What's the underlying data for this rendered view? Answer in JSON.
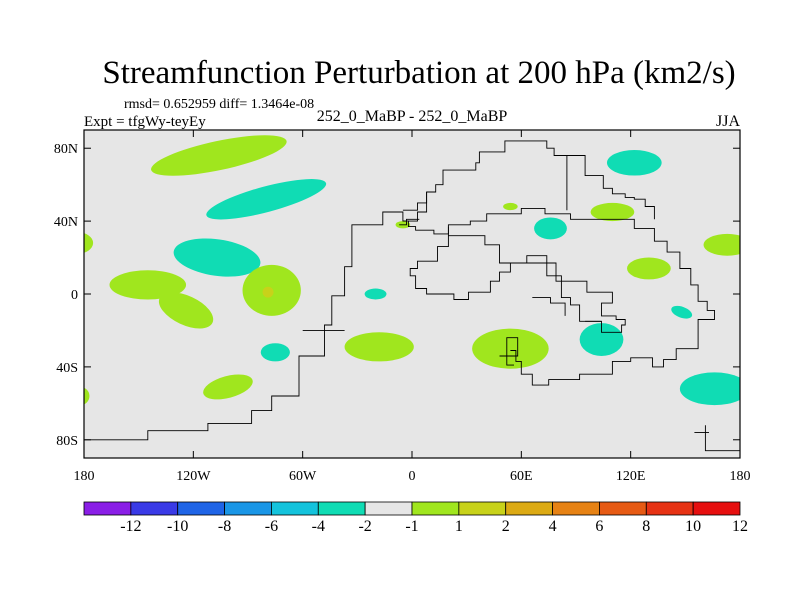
{
  "chart_data": {
    "type": "contour_map",
    "title": "Streamfunction Perturbation at 200 hPa (km2/s)",
    "subtitle_stats": "rmsd= 0.652959 diff= 1.3464e-08",
    "left_label": "Expt = tfgWy-teyEy",
    "center_label": "252_0_MaBP - 252_0_MaBP",
    "right_label": "JJA",
    "xlim": [
      -180,
      180
    ],
    "ylim": [
      -90,
      90
    ],
    "x_ticks": [
      {
        "value": -180,
        "label": "180"
      },
      {
        "value": -120,
        "label": "120W"
      },
      {
        "value": -60,
        "label": "60W"
      },
      {
        "value": 0,
        "label": "0"
      },
      {
        "value": 60,
        "label": "60E"
      },
      {
        "value": 120,
        "label": "120E"
      },
      {
        "value": 180,
        "label": "180"
      }
    ],
    "y_ticks": [
      {
        "value": 80,
        "label": "80N"
      },
      {
        "value": 40,
        "label": "40N"
      },
      {
        "value": 0,
        "label": "0"
      },
      {
        "value": -40,
        "label": "40S"
      },
      {
        "value": -80,
        "label": "80S"
      }
    ],
    "colorbar": {
      "colors": [
        "#8a1ee6",
        "#3a3ae6",
        "#1f64e6",
        "#1a96e6",
        "#14c3dc",
        "#10dcb4",
        "#e6e6e6",
        "#a0e61e",
        "#c8d21a",
        "#dcaa14",
        "#e68214",
        "#e65a14",
        "#e63214",
        "#e60f0f"
      ],
      "labels": [
        "-12",
        "-10",
        "-8",
        "-6",
        "-4",
        "-2",
        "-1",
        "1",
        "2",
        "4",
        "6",
        "8",
        "10",
        "12"
      ]
    },
    "positive_color": "#a0e61e",
    "negative_color": "#10dcb4",
    "core_color": "#c8d21a",
    "anomalies": [
      {
        "lon": -106,
        "lat": 76,
        "rlon": 38,
        "rlat": 8,
        "rot": -12,
        "level": 2
      },
      {
        "lon": -80,
        "lat": 52,
        "rlon": 34,
        "rlat": 7,
        "rot": -15,
        "level": -2
      },
      {
        "lon": -184,
        "lat": 28,
        "rlon": 9,
        "rlat": 6,
        "rot": 0,
        "level": 2
      },
      {
        "lon": -107,
        "lat": 20,
        "rlon": 24,
        "rlat": 10,
        "rot": 8,
        "level": -2
      },
      {
        "lon": -145,
        "lat": 5,
        "rlon": 21,
        "rlat": 8,
        "rot": 0,
        "level": 2
      },
      {
        "lon": -124,
        "lat": -9,
        "rlon": 16,
        "rlat": 8,
        "rot": 25,
        "level": 2
      },
      {
        "lon": -77,
        "lat": 2,
        "rlon": 16,
        "rlat": 14,
        "rot": 0,
        "level": 2
      },
      {
        "lon": -79,
        "lat": 1,
        "rlon": 3,
        "rlat": 3,
        "rot": 0,
        "level": 4
      },
      {
        "lon": -75,
        "lat": -32,
        "rlon": 8,
        "rlat": 5,
        "rot": 0,
        "level": -2
      },
      {
        "lon": -101,
        "lat": -51,
        "rlon": 14,
        "rlat": 6,
        "rot": -15,
        "level": 2
      },
      {
        "lon": -182,
        "lat": -56,
        "rlon": 5,
        "rlat": 5,
        "rot": 0,
        "level": 2
      },
      {
        "lon": -20,
        "lat": 0,
        "rlon": 6,
        "rlat": 3,
        "rot": 0,
        "level": -2
      },
      {
        "lon": -18,
        "lat": -29,
        "rlon": 19,
        "rlat": 8,
        "rot": 0,
        "level": 2
      },
      {
        "lon": -5,
        "lat": 38,
        "rlon": 4,
        "rlat": 2,
        "rot": 0,
        "level": 2
      },
      {
        "lon": 54,
        "lat": -30,
        "rlon": 21,
        "rlat": 11,
        "rot": 0,
        "level": 2
      },
      {
        "lon": 54,
        "lat": 48,
        "rlon": 4,
        "rlat": 2,
        "rot": 0,
        "level": 2
      },
      {
        "lon": 76,
        "lat": 36,
        "rlon": 9,
        "rlat": 6,
        "rot": 0,
        "level": -2
      },
      {
        "lon": 110,
        "lat": 45,
        "rlon": 12,
        "rlat": 5,
        "rot": 0,
        "level": 2
      },
      {
        "lon": 122,
        "lat": 72,
        "rlon": 15,
        "rlat": 7,
        "rot": 0,
        "level": -2
      },
      {
        "lon": 104,
        "lat": -25,
        "rlon": 12,
        "rlat": 9,
        "rot": 0,
        "level": -2
      },
      {
        "lon": 130,
        "lat": 14,
        "rlon": 12,
        "rlat": 6,
        "rot": 0,
        "level": 2
      },
      {
        "lon": 148,
        "lat": -10,
        "rlon": 6,
        "rlat": 3,
        "rot": 20,
        "level": -2
      },
      {
        "lon": 173,
        "lat": 27,
        "rlon": 13,
        "rlat": 6,
        "rot": 0,
        "level": 2
      },
      {
        "lon": 166,
        "lat": -52,
        "rlon": 19,
        "rlat": 9,
        "rot": 0,
        "level": -2
      }
    ],
    "coastlines": [
      [
        [
          -185,
          -80
        ],
        [
          -145,
          -80
        ],
        [
          -145,
          -75
        ],
        [
          -112,
          -75
        ],
        [
          -112,
          -71
        ],
        [
          -88,
          -71
        ],
        [
          -88,
          -64
        ],
        [
          -77,
          -64
        ],
        [
          -77,
          -56
        ],
        [
          -62,
          -56
        ],
        [
          -62,
          -34
        ],
        [
          -48,
          -34
        ],
        [
          -48,
          -17
        ],
        [
          -44,
          -17
        ],
        [
          -44,
          -1
        ],
        [
          -37,
          -1
        ],
        [
          -37,
          15
        ],
        [
          -33,
          15
        ],
        [
          -33,
          38
        ],
        [
          -16,
          38
        ],
        [
          -16,
          45
        ],
        [
          -5,
          45
        ],
        [
          -5,
          40
        ],
        [
          -2,
          40
        ],
        [
          -2,
          37
        ],
        [
          2,
          37
        ],
        [
          2,
          35
        ],
        [
          12,
          35
        ],
        [
          12,
          33
        ],
        [
          20,
          33
        ],
        [
          20,
          38
        ],
        [
          32,
          38
        ],
        [
          32,
          40
        ],
        [
          41,
          40
        ],
        [
          41,
          44
        ],
        [
          60,
          44
        ],
        [
          60,
          47
        ],
        [
          73,
          47
        ],
        [
          73,
          44
        ],
        [
          87,
          44
        ],
        [
          87,
          41
        ],
        [
          122,
          41
        ],
        [
          122,
          36
        ],
        [
          133,
          36
        ],
        [
          133,
          29
        ],
        [
          140,
          29
        ],
        [
          140,
          23
        ],
        [
          147,
          23
        ],
        [
          147,
          14
        ],
        [
          153,
          14
        ],
        [
          153,
          5
        ],
        [
          157,
          5
        ],
        [
          157,
          -4
        ],
        [
          162,
          -4
        ],
        [
          162,
          -9
        ],
        [
          166,
          -9
        ],
        [
          166,
          -14
        ],
        [
          157,
          -14
        ],
        [
          157,
          -30
        ],
        [
          145,
          -30
        ],
        [
          145,
          -36
        ],
        [
          138,
          -36
        ],
        [
          138,
          -40
        ],
        [
          132,
          -40
        ],
        [
          132,
          -35
        ],
        [
          120,
          -35
        ],
        [
          120,
          -37
        ],
        [
          110,
          -37
        ],
        [
          110,
          -44
        ],
        [
          92,
          -44
        ],
        [
          92,
          -47
        ],
        [
          75,
          -47
        ],
        [
          75,
          -50
        ],
        [
          66,
          -50
        ],
        [
          66,
          -44
        ],
        [
          60,
          -44
        ],
        [
          60,
          -37
        ],
        [
          57,
          -37
        ],
        [
          57,
          -31
        ],
        [
          54,
          -31
        ]
      ],
      [
        [
          -60,
          -20
        ],
        [
          -37,
          -20
        ]
      ],
      [
        [
          -5,
          40
        ],
        [
          3,
          40
        ],
        [
          3,
          45
        ],
        [
          8,
          45
        ],
        [
          8,
          56
        ],
        [
          13,
          56
        ],
        [
          13,
          60
        ],
        [
          17,
          60
        ],
        [
          17,
          68
        ],
        [
          35,
          68
        ],
        [
          35,
          72
        ],
        [
          37,
          72
        ],
        [
          37,
          78
        ],
        [
          51,
          78
        ],
        [
          51,
          84
        ],
        [
          74,
          84
        ],
        [
          74,
          80
        ],
        [
          78,
          80
        ],
        [
          78,
          76
        ],
        [
          85,
          76
        ],
        [
          85,
          46
        ]
      ],
      [
        [
          8,
          56
        ],
        [
          8,
          50
        ],
        [
          3,
          50
        ],
        [
          3,
          46
        ],
        [
          -5,
          46
        ]
      ],
      [
        [
          -7,
          38
        ],
        [
          -3,
          38
        ],
        [
          -3,
          41
        ],
        [
          4,
          41
        ]
      ],
      [
        [
          20,
          37
        ],
        [
          20,
          32
        ],
        [
          40,
          32
        ],
        [
          40,
          27
        ],
        [
          48,
          27
        ],
        [
          48,
          17
        ],
        [
          79,
          17
        ],
        [
          79,
          7
        ],
        [
          96,
          7
        ],
        [
          96,
          1
        ],
        [
          110,
          1
        ],
        [
          110,
          -5
        ],
        [
          104,
          -5
        ],
        [
          104,
          -12
        ],
        [
          112,
          -12
        ],
        [
          112,
          -14
        ],
        [
          117,
          -14
        ],
        [
          117,
          -17
        ],
        [
          115,
          -17
        ],
        [
          115,
          -21
        ],
        [
          104,
          -21
        ],
        [
          104,
          -15
        ],
        [
          92,
          -15
        ],
        [
          92,
          -6
        ],
        [
          87,
          -6
        ],
        [
          87,
          -2
        ],
        [
          82,
          -2
        ],
        [
          82,
          10
        ],
        [
          74,
          10
        ],
        [
          74,
          21
        ],
        [
          63,
          21
        ],
        [
          63,
          17
        ],
        [
          54,
          17
        ],
        [
          54,
          12
        ],
        [
          48,
          12
        ],
        [
          48,
          7
        ],
        [
          43,
          7
        ],
        [
          43,
          1
        ],
        [
          31,
          1
        ],
        [
          31,
          -3
        ],
        [
          23,
          -3
        ],
        [
          23,
          0
        ],
        [
          8,
          0
        ],
        [
          8,
          3
        ],
        [
          2,
          3
        ],
        [
          2,
          10
        ],
        [
          -1,
          10
        ],
        [
          -1,
          14
        ],
        [
          3,
          14
        ],
        [
          3,
          18
        ],
        [
          14,
          18
        ],
        [
          14,
          26
        ],
        [
          20,
          26
        ],
        [
          20,
          32
        ]
      ],
      [
        [
          48,
          -34
        ],
        [
          58,
          -34
        ],
        [
          58,
          -24
        ],
        [
          52,
          -24
        ],
        [
          52,
          -39
        ],
        [
          56,
          -39
        ]
      ],
      [
        [
          66,
          -2
        ],
        [
          76,
          -2
        ],
        [
          76,
          -5
        ],
        [
          84,
          -5
        ],
        [
          84,
          -12
        ]
      ],
      [
        [
          95,
          -15
        ],
        [
          104,
          -15
        ]
      ],
      [
        [
          161,
          -72
        ],
        [
          161,
          -86
        ],
        [
          180,
          -86
        ]
      ],
      [
        [
          155,
          -76
        ],
        [
          163,
          -76
        ]
      ],
      [
        [
          80,
          76
        ],
        [
          95,
          76
        ],
        [
          95,
          65
        ],
        [
          105,
          65
        ],
        [
          105,
          58
        ],
        [
          110,
          58
        ],
        [
          110,
          55
        ],
        [
          117,
          55
        ],
        [
          117,
          53
        ],
        [
          122,
          53
        ],
        [
          122,
          52
        ],
        [
          128,
          52
        ],
        [
          128,
          48
        ],
        [
          133,
          48
        ],
        [
          133,
          41
        ]
      ]
    ]
  }
}
